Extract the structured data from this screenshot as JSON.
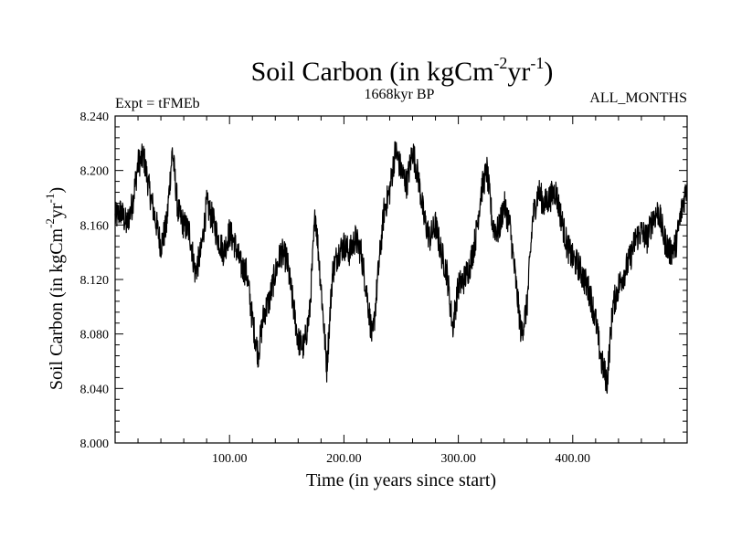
{
  "chart_data": {
    "type": "line",
    "title_main": "Soil Carbon (in kgCm",
    "title_sup1": "-2",
    "title_mid": "yr",
    "title_sup2": "-1",
    "title_end": ")",
    "left_label": "Expt = tFMEb",
    "center_label": "1668kyr BP",
    "right_label": "ALL_MONTHS",
    "xlabel": "Time (in years since start)",
    "ylabel_main": "Soil Carbon (in kgCm",
    "ylabel_sup1": "-2",
    "ylabel_mid": "yr",
    "ylabel_sup2": "-1",
    "ylabel_end": ")",
    "xlim": [
      0,
      500
    ],
    "ylim": [
      8.0,
      8.24
    ],
    "x_ticks": [
      100,
      200,
      300,
      400
    ],
    "x_tick_labels": [
      "100.00",
      "200.00",
      "300.00",
      "400.00"
    ],
    "y_ticks": [
      8.0,
      8.04,
      8.08,
      8.12,
      8.16,
      8.2,
      8.24
    ],
    "y_tick_labels": [
      "8.000",
      "8.040",
      "8.080",
      "8.120",
      "8.160",
      "8.200",
      "8.240"
    ],
    "series": [
      {
        "name": "Soil Carbon",
        "color": "#000000",
        "x": [
          0,
          5,
          10,
          15,
          20,
          25,
          30,
          35,
          40,
          45,
          50,
          55,
          60,
          65,
          70,
          75,
          80,
          85,
          90,
          95,
          100,
          105,
          110,
          115,
          120,
          125,
          130,
          135,
          140,
          145,
          150,
          155,
          160,
          165,
          170,
          175,
          180,
          185,
          190,
          195,
          200,
          205,
          210,
          215,
          220,
          225,
          230,
          235,
          240,
          245,
          250,
          255,
          260,
          265,
          270,
          275,
          280,
          285,
          290,
          295,
          300,
          305,
          310,
          315,
          320,
          325,
          330,
          335,
          340,
          345,
          350,
          355,
          360,
          365,
          370,
          375,
          380,
          385,
          390,
          395,
          400,
          405,
          410,
          415,
          420,
          425,
          430,
          435,
          440,
          445,
          450,
          455,
          460,
          465,
          470,
          475,
          480,
          485,
          490,
          495,
          500
        ],
        "y": [
          8.165,
          8.17,
          8.16,
          8.175,
          8.205,
          8.21,
          8.185,
          8.165,
          8.145,
          8.16,
          8.215,
          8.17,
          8.16,
          8.155,
          8.125,
          8.14,
          8.175,
          8.165,
          8.15,
          8.14,
          8.155,
          8.145,
          8.13,
          8.125,
          8.09,
          8.065,
          8.095,
          8.105,
          8.125,
          8.14,
          8.135,
          8.105,
          8.075,
          8.07,
          8.095,
          8.17,
          8.115,
          8.055,
          8.125,
          8.14,
          8.145,
          8.14,
          8.15,
          8.14,
          8.11,
          8.075,
          8.125,
          8.17,
          8.185,
          8.215,
          8.2,
          8.19,
          8.215,
          8.195,
          8.165,
          8.15,
          8.16,
          8.14,
          8.125,
          8.085,
          8.115,
          8.12,
          8.13,
          8.15,
          8.185,
          8.2,
          8.16,
          8.155,
          8.175,
          8.16,
          8.12,
          8.08,
          8.1,
          8.165,
          8.185,
          8.175,
          8.18,
          8.185,
          8.165,
          8.145,
          8.135,
          8.13,
          8.12,
          8.11,
          8.09,
          8.06,
          8.045,
          8.1,
          8.115,
          8.125,
          8.135,
          8.15,
          8.155,
          8.15,
          8.165,
          8.17,
          8.15,
          8.14,
          8.145,
          8.17,
          8.19
        ]
      }
    ]
  }
}
